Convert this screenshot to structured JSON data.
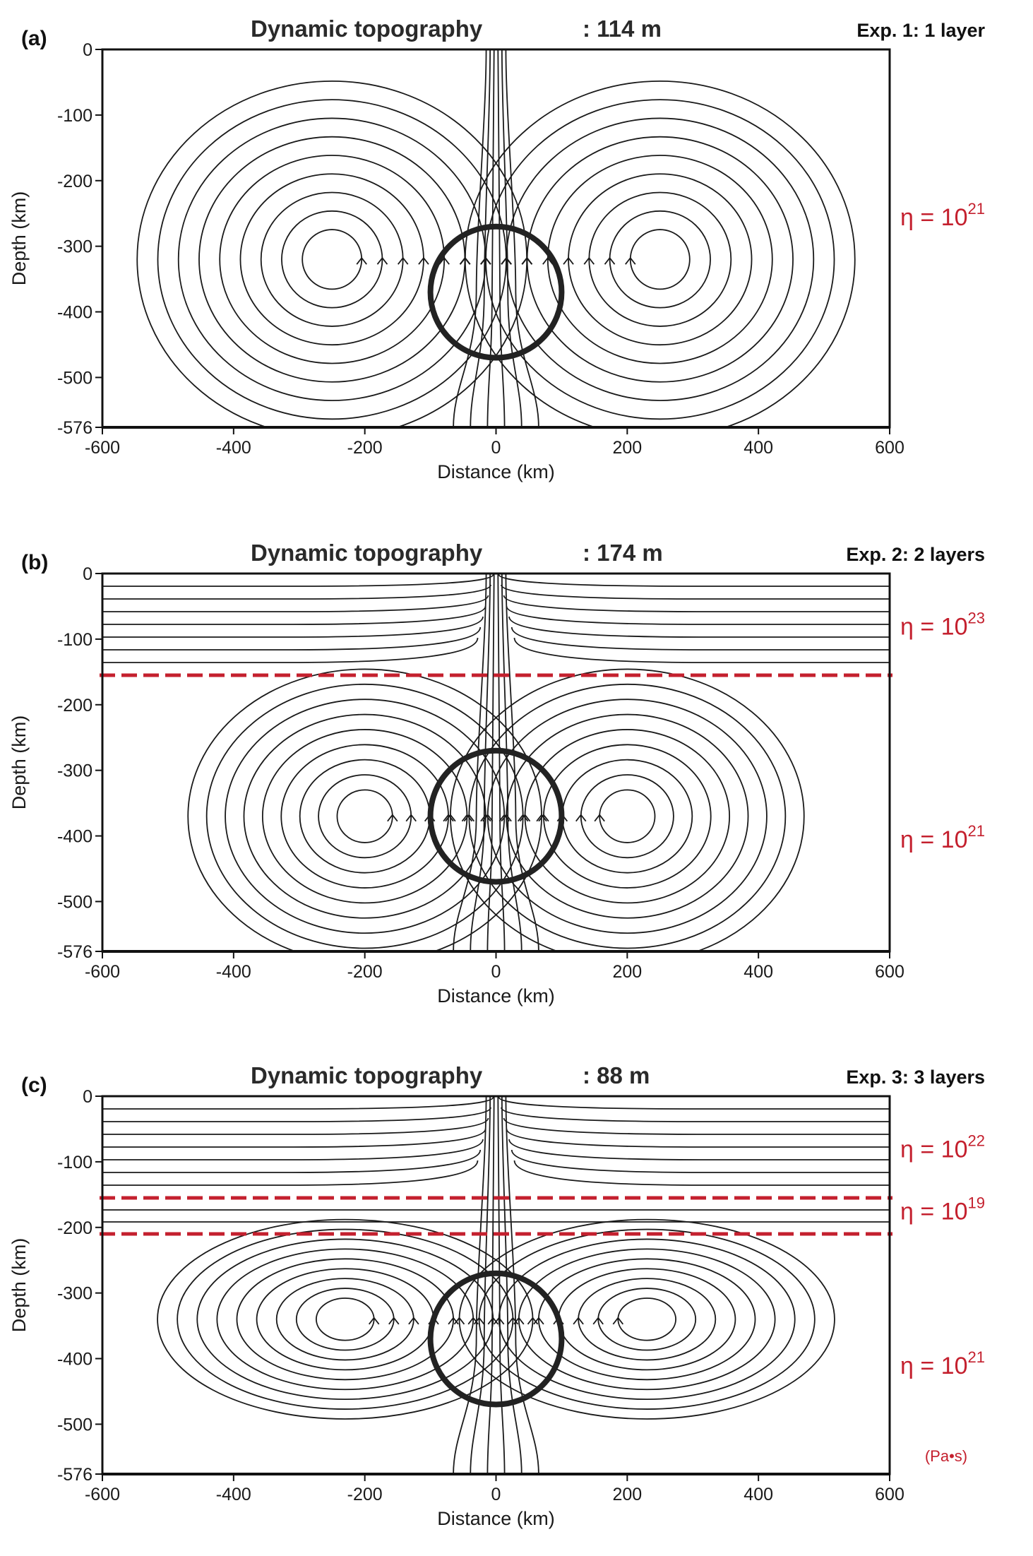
{
  "colors": {
    "viscosity_red": "#c4202e",
    "streamline": "#1a1a1a",
    "frame": "#111111"
  },
  "units_note": "(Pa•s)",
  "chart_data": [
    {
      "type": "streamline",
      "panel_label": "(a)",
      "title": "Dynamic topography",
      "topography_value": ": 114 m",
      "experiment_label": "Exp. 1: 1 layer",
      "xlabel": "Distance (km)",
      "ylabel": "Depth (km)",
      "xlim": [
        -600,
        600
      ],
      "ylim": [
        -576,
        0
      ],
      "xticks": [
        -600,
        -400,
        -200,
        0,
        200,
        400,
        600
      ],
      "yticks": [
        0,
        -100,
        -200,
        -300,
        -400,
        -500,
        -576
      ],
      "sphere": {
        "center_x_km": 0,
        "center_depth_km": -370,
        "radius_km": 100
      },
      "layer_boundaries_km": [],
      "cell_centers": [
        {
          "x_km": -250,
          "depth_km": -320
        },
        {
          "x_km": 250,
          "depth_km": -320
        }
      ],
      "viscosity_labels": [
        {
          "mantissa": "η = 10",
          "exponent": "21",
          "depth_km": -255
        }
      ]
    },
    {
      "type": "streamline",
      "panel_label": "(b)",
      "title": "Dynamic topography",
      "topography_value": ": 174 m",
      "experiment_label": "Exp. 2: 2 layers",
      "xlabel": "Distance (km)",
      "ylabel": "Depth (km)",
      "xlim": [
        -600,
        600
      ],
      "ylim": [
        -576,
        0
      ],
      "xticks": [
        -600,
        -400,
        -200,
        0,
        200,
        400,
        600
      ],
      "yticks": [
        0,
        -100,
        -200,
        -300,
        -400,
        -500,
        -576
      ],
      "sphere": {
        "center_x_km": 0,
        "center_depth_km": -370,
        "radius_km": 100
      },
      "layer_boundaries_km": [
        -155
      ],
      "cell_centers": [
        {
          "x_km": -200,
          "depth_km": -370
        },
        {
          "x_km": 200,
          "depth_km": -370
        }
      ],
      "viscosity_labels": [
        {
          "mantissa": "η = 10",
          "exponent": "23",
          "depth_km": -80
        },
        {
          "mantissa": "η = 10",
          "exponent": "21",
          "depth_km": -405
        }
      ]
    },
    {
      "type": "streamline",
      "panel_label": "(c)",
      "title": "Dynamic topography",
      "topography_value": ": 88 m",
      "experiment_label": "Exp. 3: 3 layers",
      "xlabel": "Distance (km)",
      "ylabel": "Depth (km)",
      "xlim": [
        -600,
        600
      ],
      "ylim": [
        -576,
        0
      ],
      "xticks": [
        -600,
        -400,
        -200,
        0,
        200,
        400,
        600
      ],
      "yticks": [
        0,
        -100,
        -200,
        -300,
        -400,
        -500,
        -576
      ],
      "sphere": {
        "center_x_km": 0,
        "center_depth_km": -370,
        "radius_km": 100
      },
      "layer_boundaries_km": [
        -155,
        -210
      ],
      "cell_centers": [
        {
          "x_km": -230,
          "depth_km": -340
        },
        {
          "x_km": 230,
          "depth_km": -340
        }
      ],
      "viscosity_labels": [
        {
          "mantissa": "η = 10",
          "exponent": "22",
          "depth_km": -80
        },
        {
          "mantissa": "η = 10",
          "exponent": "19",
          "depth_km": -175
        },
        {
          "mantissa": "η = 10",
          "exponent": "21",
          "depth_km": -410
        }
      ]
    }
  ]
}
